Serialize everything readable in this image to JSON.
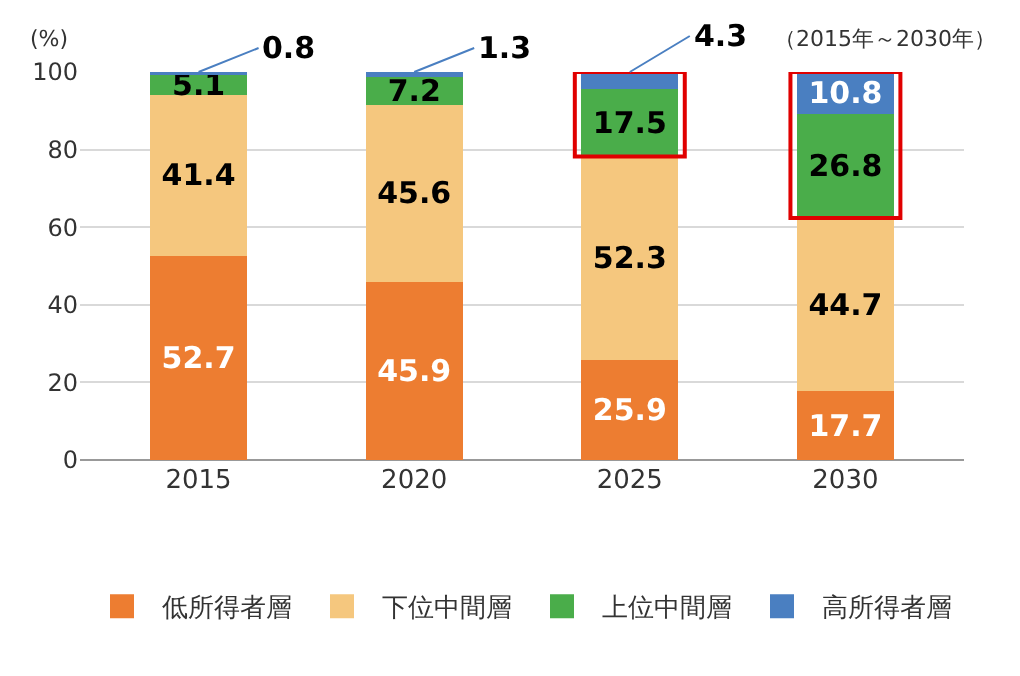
{
  "chart_data": {
    "type": "bar",
    "stacked": true,
    "ylabel": "(%)",
    "annotations": [
      "（2015年～2030年）"
    ],
    "categories": [
      "2015",
      "2020",
      "2025",
      "2030"
    ],
    "series": [
      {
        "name": "低所得者層",
        "color": "#ed7d31",
        "values": [
          52.7,
          45.9,
          25.9,
          17.7
        ]
      },
      {
        "name": "下位中間層",
        "color": "#f5c77e",
        "values": [
          41.4,
          45.6,
          52.3,
          44.7
        ]
      },
      {
        "name": "上位中間層",
        "color": "#4aad4a",
        "values": [
          5.1,
          7.2,
          17.5,
          26.8
        ]
      },
      {
        "name": "高所得者層",
        "color": "#4a7fc1",
        "values": [
          0.8,
          1.3,
          4.3,
          10.8
        ]
      }
    ],
    "ylim": [
      0,
      100
    ],
    "yticks": [
      0,
      20,
      40,
      60,
      80,
      100
    ],
    "grid": "y",
    "data_labels": true,
    "legend": "bottom"
  }
}
